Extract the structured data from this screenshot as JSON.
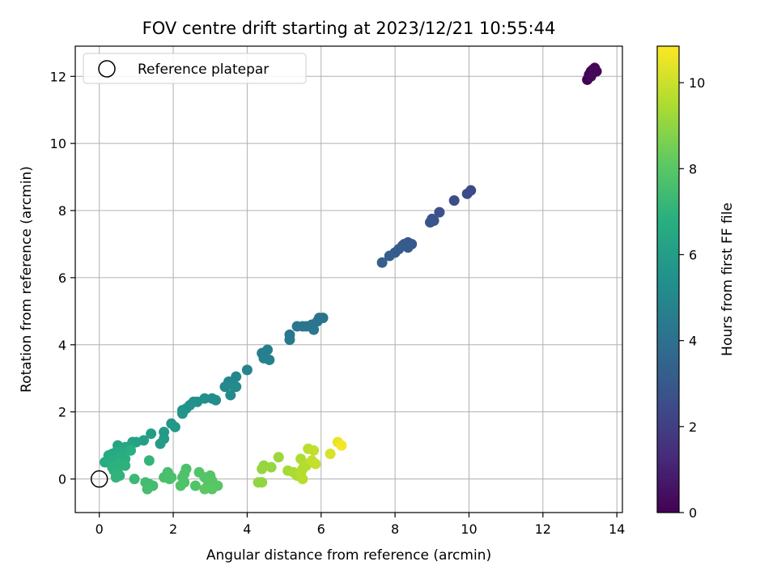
{
  "chart_data": {
    "type": "scatter",
    "title": "FOV centre drift starting at 2023/12/21 10:55:44",
    "xlabel": "Angular distance from reference (arcmin)",
    "ylabel": "Rotation from reference (arcmin)",
    "xlim": [
      -0.65,
      14.15
    ],
    "ylim": [
      -1.0,
      12.9
    ],
    "xticks": [
      0,
      2,
      4,
      6,
      8,
      10,
      12,
      14
    ],
    "yticks": [
      0,
      2,
      4,
      6,
      8,
      10,
      12
    ],
    "grid": true,
    "legend": {
      "position": "top-left",
      "entries": [
        {
          "label": "Reference platepar",
          "marker": "open-circle"
        }
      ]
    },
    "reference_point": {
      "x": 0,
      "y": 0,
      "label": "Reference platepar"
    },
    "colorbar": {
      "label": "Hours from first FF file",
      "colormap": "viridis",
      "min": 0,
      "max": 10.85,
      "ticks": [
        0,
        2,
        4,
        6,
        8,
        10
      ]
    },
    "series": [
      {
        "points": [
          {
            "x": 13.2,
            "y": 11.9,
            "hours": 0.0
          },
          {
            "x": 13.25,
            "y": 12.05,
            "hours": 0.05
          },
          {
            "x": 13.3,
            "y": 12.15,
            "hours": 0.1
          },
          {
            "x": 13.35,
            "y": 12.2,
            "hours": 0.12
          },
          {
            "x": 13.4,
            "y": 12.25,
            "hours": 0.15
          },
          {
            "x": 13.35,
            "y": 12.1,
            "hours": 0.18
          },
          {
            "x": 13.45,
            "y": 12.15,
            "hours": 0.2
          },
          {
            "x": 13.3,
            "y": 12.0,
            "hours": 0.22
          },
          {
            "x": 10.05,
            "y": 8.6,
            "hours": 2.4
          },
          {
            "x": 9.95,
            "y": 8.5,
            "hours": 2.45
          },
          {
            "x": 9.6,
            "y": 8.3,
            "hours": 2.55
          },
          {
            "x": 9.2,
            "y": 7.95,
            "hours": 2.65
          },
          {
            "x": 9.0,
            "y": 7.75,
            "hours": 2.75
          },
          {
            "x": 8.95,
            "y": 7.65,
            "hours": 2.8
          },
          {
            "x": 9.05,
            "y": 7.7,
            "hours": 2.82
          },
          {
            "x": 8.45,
            "y": 7.0,
            "hours": 3.0
          },
          {
            "x": 8.35,
            "y": 7.05,
            "hours": 3.02
          },
          {
            "x": 8.25,
            "y": 7.0,
            "hours": 3.05
          },
          {
            "x": 8.2,
            "y": 6.95,
            "hours": 3.08
          },
          {
            "x": 8.35,
            "y": 6.9,
            "hours": 3.1
          },
          {
            "x": 8.1,
            "y": 6.85,
            "hours": 3.12
          },
          {
            "x": 8.0,
            "y": 6.75,
            "hours": 3.15
          },
          {
            "x": 7.85,
            "y": 6.65,
            "hours": 3.2
          },
          {
            "x": 7.65,
            "y": 6.45,
            "hours": 3.3
          },
          {
            "x": 6.05,
            "y": 4.8,
            "hours": 4.1
          },
          {
            "x": 5.95,
            "y": 4.8,
            "hours": 4.12
          },
          {
            "x": 5.9,
            "y": 4.7,
            "hours": 4.15
          },
          {
            "x": 5.75,
            "y": 4.6,
            "hours": 4.18
          },
          {
            "x": 5.6,
            "y": 4.55,
            "hours": 4.2
          },
          {
            "x": 5.5,
            "y": 4.55,
            "hours": 4.22
          },
          {
            "x": 5.35,
            "y": 4.55,
            "hours": 4.25
          },
          {
            "x": 5.8,
            "y": 4.45,
            "hours": 4.28
          },
          {
            "x": 5.15,
            "y": 4.3,
            "hours": 4.35
          },
          {
            "x": 5.15,
            "y": 4.15,
            "hours": 4.38
          },
          {
            "x": 4.55,
            "y": 3.85,
            "hours": 4.6
          },
          {
            "x": 4.4,
            "y": 3.75,
            "hours": 4.65
          },
          {
            "x": 4.45,
            "y": 3.6,
            "hours": 4.68
          },
          {
            "x": 4.6,
            "y": 3.55,
            "hours": 4.7
          },
          {
            "x": 4.0,
            "y": 3.25,
            "hours": 4.85
          },
          {
            "x": 3.7,
            "y": 3.05,
            "hours": 4.95
          },
          {
            "x": 3.5,
            "y": 2.9,
            "hours": 5.0
          },
          {
            "x": 3.4,
            "y": 2.75,
            "hours": 5.05
          },
          {
            "x": 3.6,
            "y": 2.8,
            "hours": 5.07
          },
          {
            "x": 3.7,
            "y": 2.75,
            "hours": 5.1
          },
          {
            "x": 3.55,
            "y": 2.5,
            "hours": 5.15
          },
          {
            "x": 3.15,
            "y": 2.35,
            "hours": 5.25
          },
          {
            "x": 3.05,
            "y": 2.4,
            "hours": 5.28
          },
          {
            "x": 2.85,
            "y": 2.4,
            "hours": 5.32
          },
          {
            "x": 2.65,
            "y": 2.3,
            "hours": 5.38
          },
          {
            "x": 2.55,
            "y": 2.3,
            "hours": 5.42
          },
          {
            "x": 2.45,
            "y": 2.2,
            "hours": 5.45
          },
          {
            "x": 2.35,
            "y": 2.1,
            "hours": 5.5
          },
          {
            "x": 2.25,
            "y": 2.05,
            "hours": 5.52
          },
          {
            "x": 2.25,
            "y": 1.95,
            "hours": 5.55
          },
          {
            "x": 1.95,
            "y": 1.65,
            "hours": 5.7
          },
          {
            "x": 2.05,
            "y": 1.55,
            "hours": 5.75
          },
          {
            "x": 1.75,
            "y": 1.4,
            "hours": 5.85
          },
          {
            "x": 1.75,
            "y": 1.2,
            "hours": 5.9
          },
          {
            "x": 1.65,
            "y": 1.05,
            "hours": 5.95
          },
          {
            "x": 1.4,
            "y": 1.35,
            "hours": 6.0
          },
          {
            "x": 1.2,
            "y": 1.15,
            "hours": 6.1
          },
          {
            "x": 1.0,
            "y": 1.1,
            "hours": 6.15
          },
          {
            "x": 0.9,
            "y": 1.1,
            "hours": 6.2
          },
          {
            "x": 0.85,
            "y": 1.0,
            "hours": 6.3
          },
          {
            "x": 0.5,
            "y": 1.0,
            "hours": 6.35
          },
          {
            "x": 0.7,
            "y": 0.95,
            "hours": 6.4
          },
          {
            "x": 0.35,
            "y": 0.75,
            "hours": 6.45
          },
          {
            "x": 0.45,
            "y": 0.8,
            "hours": 6.5
          },
          {
            "x": 0.55,
            "y": 0.8,
            "hours": 6.55
          },
          {
            "x": 0.25,
            "y": 0.7,
            "hours": 6.6
          },
          {
            "x": 0.65,
            "y": 0.75,
            "hours": 6.62
          },
          {
            "x": 0.15,
            "y": 0.5,
            "hours": 6.65
          },
          {
            "x": 0.3,
            "y": 0.55,
            "hours": 6.7
          },
          {
            "x": 0.4,
            "y": 0.55,
            "hours": 6.72
          },
          {
            "x": 0.5,
            "y": 0.6,
            "hours": 6.75
          },
          {
            "x": 0.6,
            "y": 0.55,
            "hours": 6.78
          },
          {
            "x": 0.7,
            "y": 0.6,
            "hours": 6.8
          },
          {
            "x": 0.85,
            "y": 0.85,
            "hours": 6.82
          },
          {
            "x": 0.35,
            "y": 0.35,
            "hours": 6.85
          },
          {
            "x": 0.45,
            "y": 0.4,
            "hours": 6.88
          },
          {
            "x": 0.55,
            "y": 0.45,
            "hours": 6.9
          },
          {
            "x": 0.7,
            "y": 0.4,
            "hours": 6.92
          },
          {
            "x": 0.4,
            "y": 0.25,
            "hours": 6.95
          },
          {
            "x": 0.5,
            "y": 0.2,
            "hours": 6.98
          },
          {
            "x": 0.55,
            "y": 0.1,
            "hours": 7.0
          },
          {
            "x": 0.45,
            "y": 0.05,
            "hours": 7.02
          },
          {
            "x": 1.35,
            "y": 0.55,
            "hours": 7.05
          },
          {
            "x": 0.95,
            "y": 0.0,
            "hours": 7.3
          },
          {
            "x": 1.25,
            "y": -0.1,
            "hours": 7.45
          },
          {
            "x": 1.35,
            "y": -0.15,
            "hours": 7.5
          },
          {
            "x": 1.45,
            "y": -0.2,
            "hours": 7.52
          },
          {
            "x": 1.3,
            "y": -0.3,
            "hours": 7.55
          },
          {
            "x": 1.85,
            "y": 0.2,
            "hours": 7.6
          },
          {
            "x": 1.75,
            "y": 0.05,
            "hours": 7.62
          },
          {
            "x": 1.95,
            "y": 0.05,
            "hours": 7.65
          },
          {
            "x": 1.9,
            "y": 0.0,
            "hours": 7.67
          },
          {
            "x": 2.35,
            "y": 0.3,
            "hours": 7.7
          },
          {
            "x": 2.3,
            "y": 0.15,
            "hours": 7.72
          },
          {
            "x": 2.25,
            "y": 0.05,
            "hours": 7.75
          },
          {
            "x": 2.3,
            "y": -0.1,
            "hours": 7.77
          },
          {
            "x": 2.2,
            "y": -0.2,
            "hours": 7.8
          },
          {
            "x": 2.6,
            "y": -0.2,
            "hours": 7.82
          },
          {
            "x": 2.7,
            "y": 0.2,
            "hours": 7.85
          },
          {
            "x": 2.85,
            "y": 0.05,
            "hours": 7.88
          },
          {
            "x": 3.0,
            "y": 0.1,
            "hours": 7.9
          },
          {
            "x": 3.05,
            "y": -0.05,
            "hours": 7.92
          },
          {
            "x": 2.95,
            "y": -0.15,
            "hours": 7.95
          },
          {
            "x": 3.1,
            "y": -0.2,
            "hours": 7.97
          },
          {
            "x": 3.2,
            "y": -0.2,
            "hours": 8.0
          },
          {
            "x": 3.05,
            "y": -0.3,
            "hours": 8.02
          },
          {
            "x": 2.85,
            "y": -0.3,
            "hours": 8.05
          },
          {
            "x": 4.3,
            "y": -0.1,
            "hours": 9.0
          },
          {
            "x": 4.4,
            "y": -0.1,
            "hours": 9.02
          },
          {
            "x": 4.45,
            "y": 0.4,
            "hours": 9.05
          },
          {
            "x": 4.4,
            "y": 0.3,
            "hours": 9.08
          },
          {
            "x": 4.65,
            "y": 0.35,
            "hours": 9.1
          },
          {
            "x": 4.85,
            "y": 0.65,
            "hours": 9.2
          },
          {
            "x": 5.1,
            "y": 0.25,
            "hours": 9.35
          },
          {
            "x": 5.25,
            "y": 0.2,
            "hours": 9.4
          },
          {
            "x": 5.35,
            "y": 0.1,
            "hours": 9.45
          },
          {
            "x": 5.45,
            "y": 0.6,
            "hours": 9.5
          },
          {
            "x": 5.55,
            "y": 0.45,
            "hours": 9.55
          },
          {
            "x": 5.5,
            "y": 0.3,
            "hours": 9.58
          },
          {
            "x": 5.6,
            "y": 0.4,
            "hours": 9.6
          },
          {
            "x": 5.45,
            "y": 0.15,
            "hours": 9.62
          },
          {
            "x": 5.5,
            "y": 0.0,
            "hours": 9.65
          },
          {
            "x": 5.65,
            "y": 0.9,
            "hours": 9.7
          },
          {
            "x": 5.8,
            "y": 0.85,
            "hours": 9.8
          },
          {
            "x": 5.75,
            "y": 0.55,
            "hours": 9.85
          },
          {
            "x": 5.85,
            "y": 0.45,
            "hours": 9.9
          },
          {
            "x": 6.25,
            "y": 0.75,
            "hours": 10.2
          },
          {
            "x": 6.45,
            "y": 1.1,
            "hours": 10.5
          },
          {
            "x": 6.55,
            "y": 1.0,
            "hours": 10.7
          }
        ]
      }
    ]
  }
}
